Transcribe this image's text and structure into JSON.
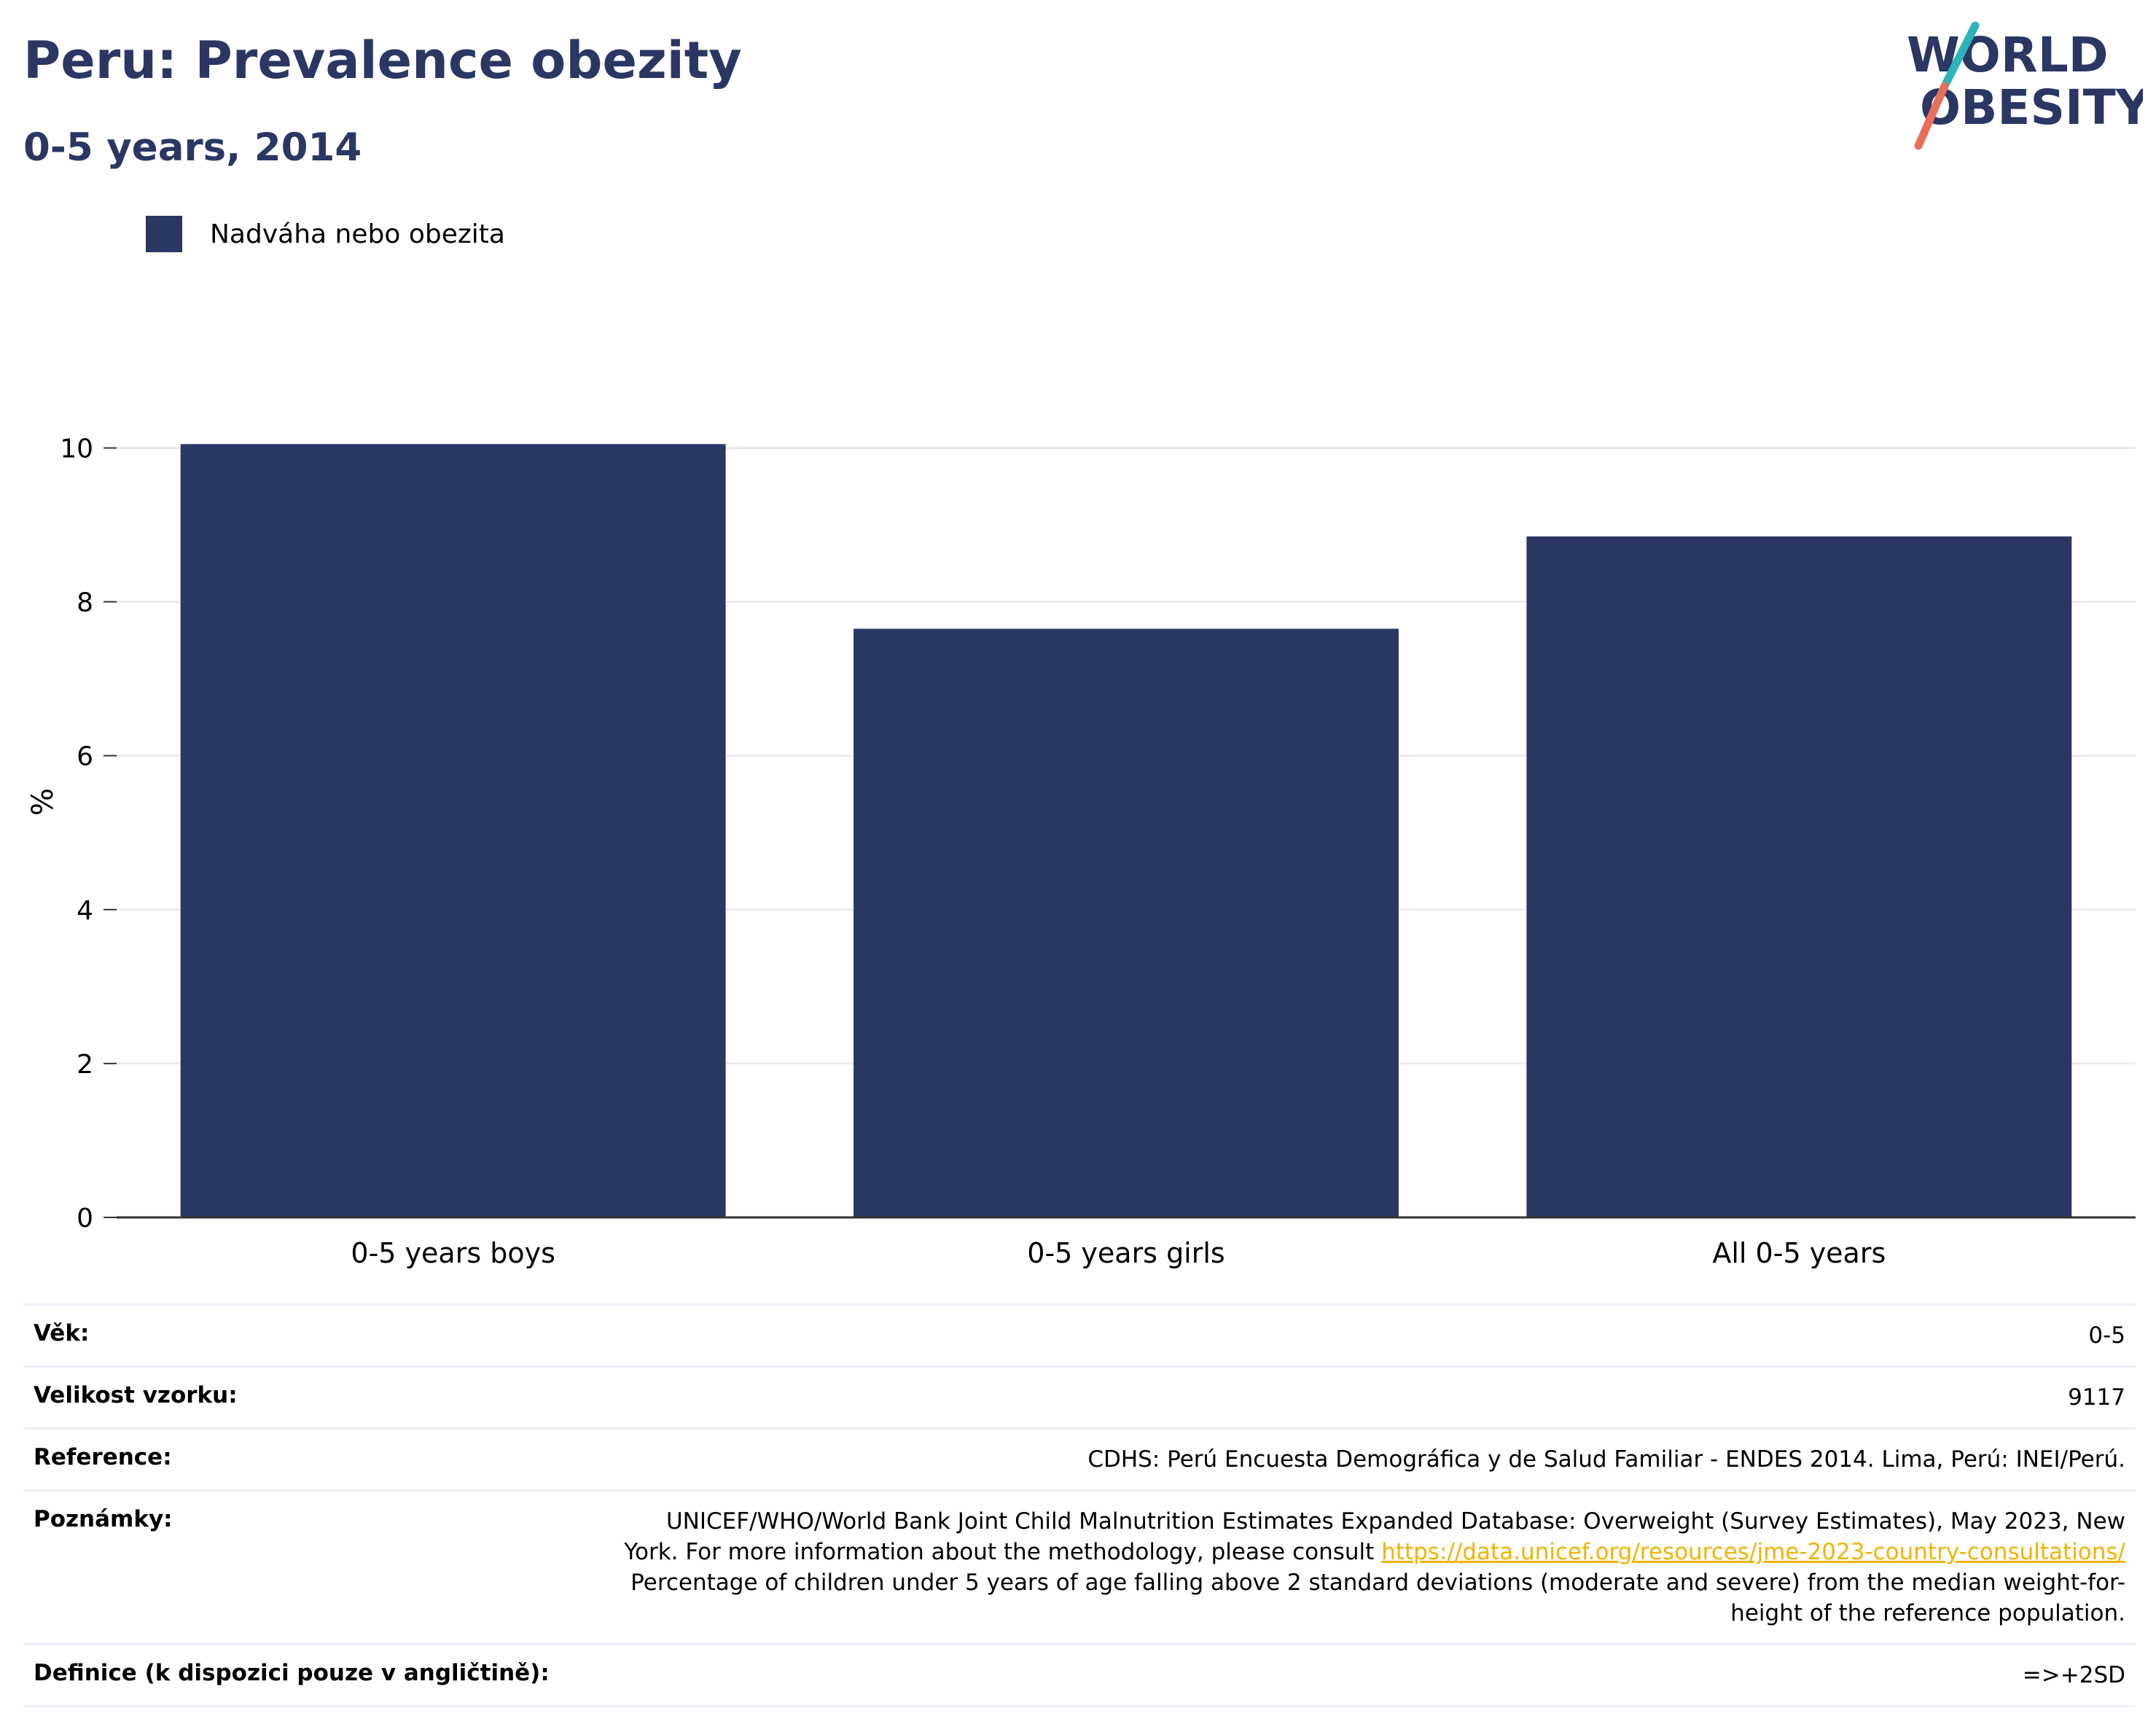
{
  "header": {
    "title": "Peru: Prevalence obezity",
    "subtitle": "0-5 years, 2014",
    "logo_text_line1": "WORLD",
    "logo_text_line2": "OBESITY"
  },
  "legend": {
    "label": "Nadváha nebo obezita",
    "color": "#2a3763"
  },
  "chart_data": {
    "type": "bar",
    "categories": [
      "0-5 years boys",
      "0-5 years girls",
      "All 0-5 years"
    ],
    "series": [
      {
        "name": "Nadváha nebo obezita",
        "values": [
          10.05,
          7.65,
          8.85
        ],
        "color": "#2a3763"
      }
    ],
    "ylabel": "%",
    "ylim": [
      0,
      10.8
    ],
    "yticks": [
      0,
      2,
      4,
      6,
      8,
      10
    ],
    "grid": true,
    "legend_position": "top-left"
  },
  "info": {
    "age_label": "Věk:",
    "age_value": "0-5",
    "sample_label": "Velikost vzorku:",
    "sample_value": "9117",
    "reference_label": "Reference:",
    "reference_value": "CDHS: Perú Encuesta Demográfica y de Salud Familiar - ENDES 2014. Lima, Perú: INEI/Perú.",
    "notes_label": "Poznámky:",
    "notes_line1": "UNICEF/WHO/World Bank Joint Child Malnutrition Estimates Expanded Database: Overweight (Survey Estimates), May 2023, New",
    "notes_line2": "York. For more information about the methodology, please consult",
    "notes_link": "https://data.unicef.org/resources/jme-2023-country-consultations/",
    "notes_line3": "Percentage of children under 5 years of age falling above 2 standard deviations (moderate and severe) from the median weight-for-",
    "notes_line4": "height of the reference population.",
    "definition_label": "Definice (k dispozici pouze v angličtině):",
    "definition_value": "=>+2SD"
  }
}
